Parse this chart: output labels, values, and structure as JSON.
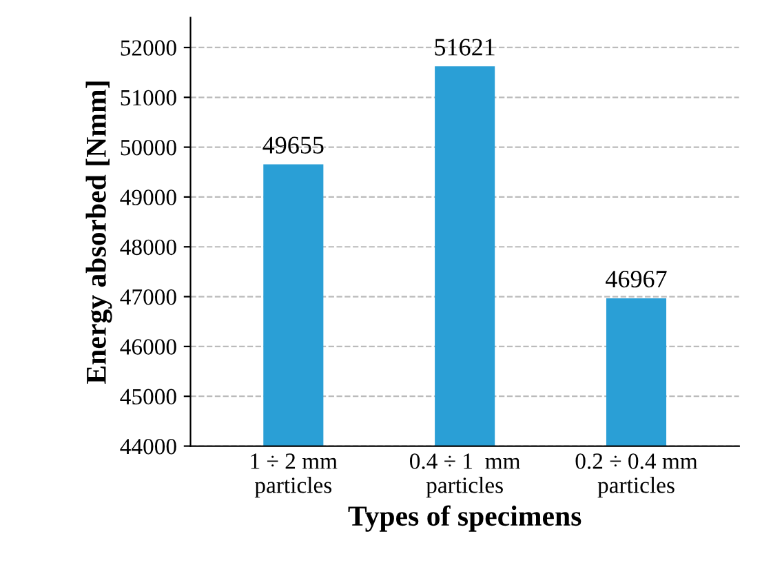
{
  "chart_data": {
    "type": "bar",
    "categories": [
      "1 ÷ 2 mm\nparticles",
      "0.4 ÷ 1  mm\nparticles",
      "0.2 ÷ 0.4 mm\nparticles"
    ],
    "values": [
      49655,
      51621,
      46967
    ],
    "color": "#2a9fd6",
    "xlabel": "Types of specimens",
    "ylabel": "Energy absorbed [Nmm]",
    "ylim": [
      44000,
      52600
    ],
    "yticks": [
      44000,
      45000,
      46000,
      47000,
      48000,
      49000,
      50000,
      51000,
      52000
    ],
    "grid": "y",
    "data_labels": true
  }
}
